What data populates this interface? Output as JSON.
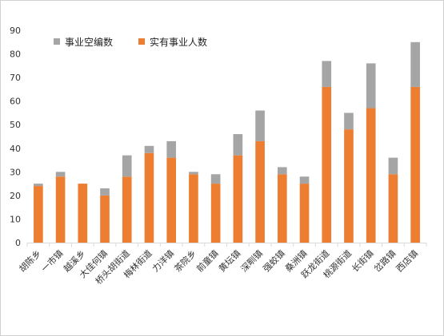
{
  "chart_data": {
    "type": "bar",
    "stacked": true,
    "categories": [
      "胡陈乡",
      "一市镇",
      "越溪乡",
      "大佳何镇",
      "桥头胡街道",
      "梅林街道",
      "力洋镇",
      "茶院乡",
      "前童镇",
      "黄坛镇",
      "深甽镇",
      "强蛟镇",
      "桑洲镇",
      "跃龙街道",
      "桃源街道",
      "长街镇",
      "岔路镇",
      "西店镇"
    ],
    "series": [
      {
        "name": "实有事业人数",
        "color": "#ed7d31",
        "values": [
          24,
          28,
          25,
          20,
          28,
          38,
          36,
          29,
          25,
          37,
          43,
          29,
          25,
          66,
          48,
          57,
          29,
          66
        ]
      },
      {
        "name": "事业空编数",
        "color": "#a5a5a5",
        "values": [
          1,
          2,
          0,
          3,
          9,
          3,
          7,
          1,
          4,
          9,
          13,
          3,
          3,
          11,
          7,
          19,
          7,
          19
        ]
      }
    ],
    "legend_order": [
      "事业空编数",
      "实有事业人数"
    ],
    "legend_position": "top-left",
    "ylim": [
      0,
      90
    ],
    "yticks": [
      "0",
      "10",
      "20",
      "30",
      "40",
      "50",
      "60",
      "70",
      "80",
      "90"
    ],
    "grid": false
  }
}
